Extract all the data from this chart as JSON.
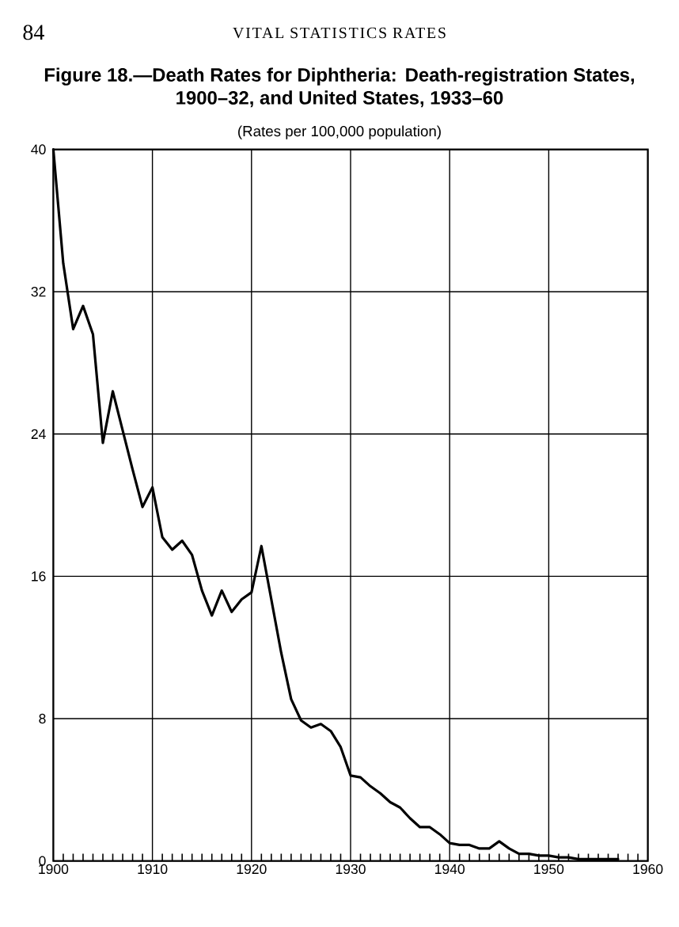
{
  "chart_data": {
    "type": "line",
    "title": "Figure 18.—Death Rates for Diphtheria: Death-registration States, 1900–32, and United States, 1933–60",
    "subtitle": "(Rates per 100,000 population)",
    "annotations": [
      "84",
      "VITAL STATISTICS RATES"
    ],
    "x": [
      1900,
      1901,
      1902,
      1903,
      1904,
      1905,
      1906,
      1907,
      1908,
      1909,
      1910,
      1911,
      1912,
      1913,
      1914,
      1915,
      1916,
      1917,
      1918,
      1919,
      1920,
      1921,
      1922,
      1923,
      1924,
      1925,
      1926,
      1927,
      1928,
      1929,
      1930,
      1931,
      1932,
      1933,
      1934,
      1935,
      1936,
      1937,
      1938,
      1939,
      1940,
      1941,
      1942,
      1943,
      1944,
      1945,
      1946,
      1947,
      1948,
      1949,
      1950,
      1951,
      1952,
      1953,
      1954,
      1955,
      1956,
      1957
    ],
    "values": [
      40.0,
      33.6,
      29.9,
      31.2,
      29.6,
      23.5,
      26.4,
      24.2,
      22.0,
      19.9,
      21.0,
      18.2,
      17.5,
      18.0,
      17.2,
      15.2,
      13.8,
      15.2,
      14.0,
      14.7,
      15.1,
      17.7,
      14.7,
      11.7,
      9.1,
      7.9,
      7.5,
      7.7,
      7.3,
      6.4,
      4.8,
      4.7,
      4.2,
      3.8,
      3.3,
      3.0,
      2.4,
      1.9,
      1.9,
      1.5,
      1.0,
      0.9,
      0.9,
      0.7,
      0.7,
      1.1,
      0.7,
      0.4,
      0.4,
      0.3,
      0.3,
      0.2,
      0.2,
      0.1,
      0.1,
      0.1,
      0.1,
      0.1
    ],
    "color": "#000000",
    "xlim": [
      1900,
      1960
    ],
    "ylim": [
      0,
      40
    ],
    "xticks": [
      1900,
      {
        "value": 1901,
        "label": null
      },
      {
        "value": 1902,
        "label": null
      },
      {
        "value": 1903,
        "label": null
      },
      {
        "value": 1904,
        "label": null
      },
      {
        "value": 1905,
        "label": null
      },
      {
        "value": 1906,
        "label": null
      },
      {
        "value": 1907,
        "label": null
      },
      {
        "value": 1908,
        "label": null
      },
      {
        "value": 1909,
        "label": null
      },
      1910,
      {
        "value": 1911,
        "label": null
      },
      {
        "value": 1912,
        "label": null
      },
      {
        "value": 1913,
        "label": null
      },
      {
        "value": 1914,
        "label": null
      },
      {
        "value": 1915,
        "label": null
      },
      {
        "value": 1916,
        "label": null
      },
      {
        "value": 1917,
        "label": null
      },
      {
        "value": 1918,
        "label": null
      },
      {
        "value": 1919,
        "label": null
      },
      1920,
      {
        "value": 1921,
        "label": null
      },
      {
        "value": 1922,
        "label": null
      },
      {
        "value": 1923,
        "label": null
      },
      {
        "value": 1924,
        "label": null
      },
      {
        "value": 1925,
        "label": null
      },
      {
        "value": 1926,
        "label": null
      },
      {
        "value": 1927,
        "label": null
      },
      {
        "value": 1928,
        "label": null
      },
      {
        "value": 1929,
        "label": null
      },
      1930,
      {
        "value": 1931,
        "label": null
      },
      {
        "value": 1932,
        "label": null
      },
      {
        "value": 1933,
        "label": null
      },
      {
        "value": 1934,
        "label": null
      },
      {
        "value": 1935,
        "label": null
      },
      {
        "value": 1936,
        "label": null
      },
      {
        "value": 1937,
        "label": null
      },
      {
        "value": 1938,
        "label": null
      },
      {
        "value": 1939,
        "label": null
      },
      1940,
      {
        "value": 1941,
        "label": null
      },
      {
        "value": 1942,
        "label": null
      },
      {
        "value": 1943,
        "label": null
      },
      {
        "value": 1944,
        "label": null
      },
      {
        "value": 1945,
        "label": null
      },
      {
        "value": 1946,
        "label": null
      },
      {
        "value": 1947,
        "label": null
      },
      {
        "value": 1948,
        "label": null
      },
      {
        "value": 1949,
        "label": null
      },
      1950,
      {
        "value": 1951,
        "label": null
      },
      {
        "value": 1952,
        "label": null
      },
      {
        "value": 1953,
        "label": null
      },
      {
        "value": 1954,
        "label": null
      },
      {
        "value": 1955,
        "label": null
      },
      {
        "value": 1956,
        "label": null
      },
      {
        "value": 1957,
        "label": null
      },
      {
        "value": 1958,
        "label": null
      },
      {
        "value": 1959,
        "label": null
      },
      1960
    ],
    "yticks": [
      0,
      8,
      16,
      24,
      32,
      40
    ],
    "grid": true,
    "legend": false,
    "marker": "none",
    "line_style": "solid"
  }
}
